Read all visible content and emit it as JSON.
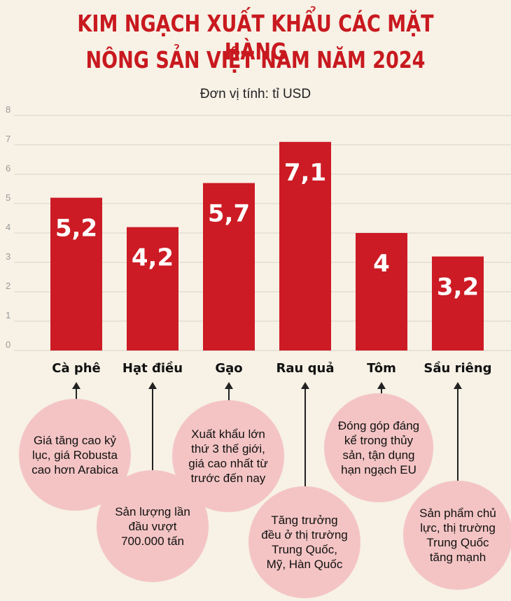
{
  "title_line_1": "KIM NGẠCH XUẤT KHẨU CÁC MẶT HÀNG",
  "title_line_2": "NÔNG SẢN VIỆT NAM NĂM 2024",
  "unit": "Đơn vị tính: tỉ USD",
  "colors": {
    "bar": "#cc1b24",
    "title": "#c8191f",
    "bubble": "#f4c4c4",
    "background": "#f7f1e6"
  },
  "chart_data": {
    "type": "bar",
    "categories": [
      "Cà phê",
      "Hạt điều",
      "Gạo",
      "Rau quả",
      "Tôm",
      "Sầu riêng"
    ],
    "values": [
      5.2,
      4.2,
      5.7,
      7.1,
      4,
      3.2
    ],
    "value_labels": [
      "5,2",
      "4,2",
      "5,7",
      "7,1",
      "4",
      "3,2"
    ],
    "y_ticks": [
      "0",
      "1",
      "2",
      "3",
      "4",
      "5",
      "6",
      "7",
      "8"
    ],
    "ylim": [
      0,
      8
    ],
    "grid": true
  },
  "notes": [
    {
      "category": "Cà phê",
      "text": "Giá tăng cao kỷ lục, giá Robusta cao hơn Arabica"
    },
    {
      "category": "Hạt điều",
      "text": "Sản lượng lần đầu vượt 700.000 tấn"
    },
    {
      "category": "Gạo",
      "text": "Xuất khẩu lớn thứ 3 thế giới, giá cao nhất từ trước đến nay"
    },
    {
      "category": "Rau quả",
      "text": "Tăng trưởng đều ở thị trường Trung Quốc, Mỹ, Hàn Quốc"
    },
    {
      "category": "Tôm",
      "text": "Đóng góp đáng kể trong thủy sản, tận dụng hạn ngạch EU"
    },
    {
      "category": "Sầu riêng",
      "text": "Sản phẩm chủ lực, thị trường Trung Quốc tăng mạnh"
    }
  ]
}
